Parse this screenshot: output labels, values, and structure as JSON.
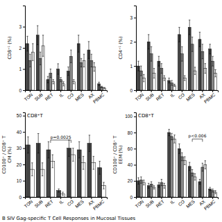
{
  "title": "B  SIV Gag-specific T Cell Responses in Mucosal Tissues",
  "chart_data": [
    {
      "type": "bar",
      "categories": [
        "TON",
        "SUB",
        "RET",
        "IL",
        "CO",
        "MES",
        "AX",
        "PBMC"
      ],
      "y_label": [
        "CD8⁺¹ (%)"
      ],
      "ylim": [
        0,
        4.0
      ],
      "yticks": [
        0,
        1,
        2,
        3
      ],
      "series": [
        {
          "color": "#444444",
          "values": [
            2.2,
            2.6,
            0.5,
            1.0,
            0.9,
            2.2,
            1.9,
            0.3
          ],
          "errors": [
            0.35,
            0.45,
            0.15,
            0.25,
            0.2,
            0.4,
            0.4,
            0.08
          ]
        },
        {
          "color": "#888888",
          "values": [
            1.4,
            1.5,
            0.8,
            0.5,
            1.6,
            1.3,
            1.4,
            0.15
          ],
          "errors": [
            0.3,
            0.3,
            0.2,
            0.1,
            0.3,
            0.2,
            0.3,
            0.04
          ]
        },
        {
          "color": "#ffffff",
          "values": [
            1.8,
            2.1,
            0.4,
            0.3,
            0.4,
            1.4,
            1.1,
            0.1
          ],
          "errors": [
            0.4,
            0.5,
            0.1,
            0.1,
            0.1,
            0.3,
            0.2,
            0.03
          ]
        }
      ]
    },
    {
      "type": "bar",
      "categories": [
        "TON",
        "SUB",
        "RET",
        "IL",
        "CO",
        "MES",
        "AX",
        "PBMC"
      ],
      "y_label": [
        "CD4⁺¹ (%)"
      ],
      "ylim": [
        0,
        3.5
      ],
      "yticks": [
        0,
        1,
        2,
        3
      ],
      "series": [
        {
          "color": "#444444",
          "values": [
            1.0,
            2.0,
            1.2,
            0.4,
            2.3,
            2.6,
            2.1,
            1.7
          ],
          "errors": [
            0.2,
            0.3,
            0.2,
            0.1,
            0.3,
            0.3,
            0.3,
            0.2
          ]
        },
        {
          "color": "#888888",
          "values": [
            0.8,
            1.5,
            0.9,
            0.3,
            1.5,
            1.9,
            1.6,
            1.2
          ],
          "errors": [
            0.2,
            0.3,
            0.2,
            0.1,
            0.3,
            0.3,
            0.3,
            0.2
          ]
        },
        {
          "color": "#ffffff",
          "values": [
            0.5,
            0.7,
            0.5,
            0.2,
            0.5,
            0.8,
            0.9,
            0.7
          ],
          "errors": [
            0.15,
            0.2,
            0.1,
            0.05,
            0.1,
            0.15,
            0.2,
            0.15
          ]
        }
      ]
    },
    {
      "type": "bar",
      "title": "CD8⁺T",
      "categories": [
        "TON",
        "SUB",
        "RET",
        "IL",
        "CO",
        "MES",
        "AX",
        "PBMC"
      ],
      "y_label": [
        "CD100⁺ / CD8⁺ T",
        "CM (%)"
      ],
      "ylim": [
        0,
        52
      ],
      "yticks": [
        0,
        10,
        20,
        30,
        40,
        50
      ],
      "series": [
        {
          "color": "#444444",
          "values": [
            32,
            33,
            29,
            4,
            30,
            29,
            33,
            18
          ],
          "errors": [
            5,
            6,
            5,
            1,
            5,
            5,
            5,
            4
          ]
        },
        {
          "color": "#ffffff",
          "values": [
            17,
            17,
            22,
            2,
            26,
            21,
            21,
            7
          ],
          "errors": [
            4,
            4,
            4,
            1,
            4,
            4,
            4,
            2
          ]
        }
      ],
      "annotations": [
        {
          "text": "p=0.0025",
          "x": [
            "RET",
            "CO"
          ],
          "y": 35
        }
      ]
    },
    {
      "type": "bar",
      "title": "CD8⁺T",
      "categories": [
        "TON",
        "SUB",
        "RET",
        "IL",
        "CO",
        "MES",
        "AX",
        "PBMC"
      ],
      "y_label": [
        "CD100⁺ / CD8⁺ T",
        "EEM (%)"
      ],
      "ylim": [
        0,
        105
      ],
      "yticks": [
        0,
        20,
        40,
        60,
        80,
        100
      ],
      "series": [
        {
          "color": "#444444",
          "values": [
            20,
            14,
            15,
            80,
            60,
            38,
            19,
            10
          ],
          "errors": [
            4,
            3,
            3,
            4,
            6,
            5,
            3,
            2
          ]
        },
        {
          "color": "#888888",
          "values": [
            21,
            16,
            18,
            75,
            50,
            30,
            37,
            8
          ],
          "errors": [
            4,
            3,
            4,
            4,
            5,
            4,
            5,
            2
          ]
        },
        {
          "color": "#ffffff",
          "values": [
            18,
            12,
            14,
            72,
            45,
            25,
            40,
            6
          ],
          "errors": [
            3,
            2,
            3,
            5,
            5,
            4,
            5,
            2
          ]
        }
      ],
      "annotations": [
        {
          "text": "p<0.006",
          "x": [
            "MES",
            "AX"
          ],
          "y": 72
        }
      ]
    }
  ]
}
